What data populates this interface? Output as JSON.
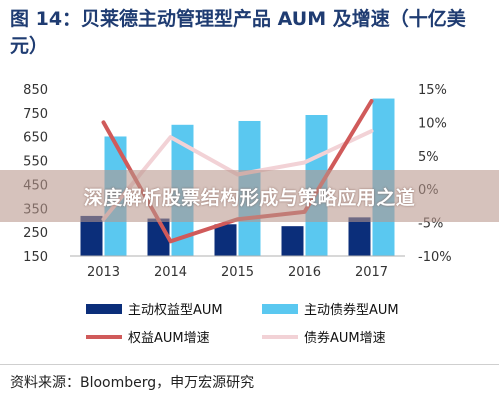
{
  "title": "图 14：贝莱德主动管理型产品 AUM 及增速（十亿美元）",
  "banner_text": "深度解析股票结构形成与策略应用之道",
  "source": "资料来源：Bloomberg，申万宏源研究",
  "chart_data": {
    "type": "bar",
    "categories": [
      "2013",
      "2014",
      "2015",
      "2016",
      "2017"
    ],
    "ylim_left": [
      150,
      850
    ],
    "yticks_left": [
      "850",
      "750",
      "650",
      "550",
      "450",
      "350",
      "250",
      "150"
    ],
    "ylim_right": [
      -10,
      15
    ],
    "yticks_right": [
      "15%",
      "10%",
      "5%",
      "0%",
      "-5%",
      "-10%"
    ],
    "series": [
      {
        "name": "主动权益型AUM",
        "kind": "bar",
        "axis": "left",
        "color": "#0b2e7a",
        "values": [
          318,
          307,
          283,
          275,
          312
        ]
      },
      {
        "name": "主动债券型AUM",
        "kind": "bar",
        "axis": "left",
        "color": "#5ac8f0",
        "values": [
          651,
          700,
          716,
          741,
          810
        ]
      },
      {
        "name": "权益AUM增速",
        "kind": "line",
        "axis": "right",
        "color": "#d05a5a",
        "values": [
          10.0,
          -7.8,
          -4.5,
          -3.4,
          13.2
        ]
      },
      {
        "name": "债券AUM增速",
        "kind": "line",
        "axis": "right",
        "color": "#f2d2d6",
        "values": [
          -4.5,
          7.8,
          2.2,
          4.0,
          8.7
        ]
      }
    ]
  }
}
